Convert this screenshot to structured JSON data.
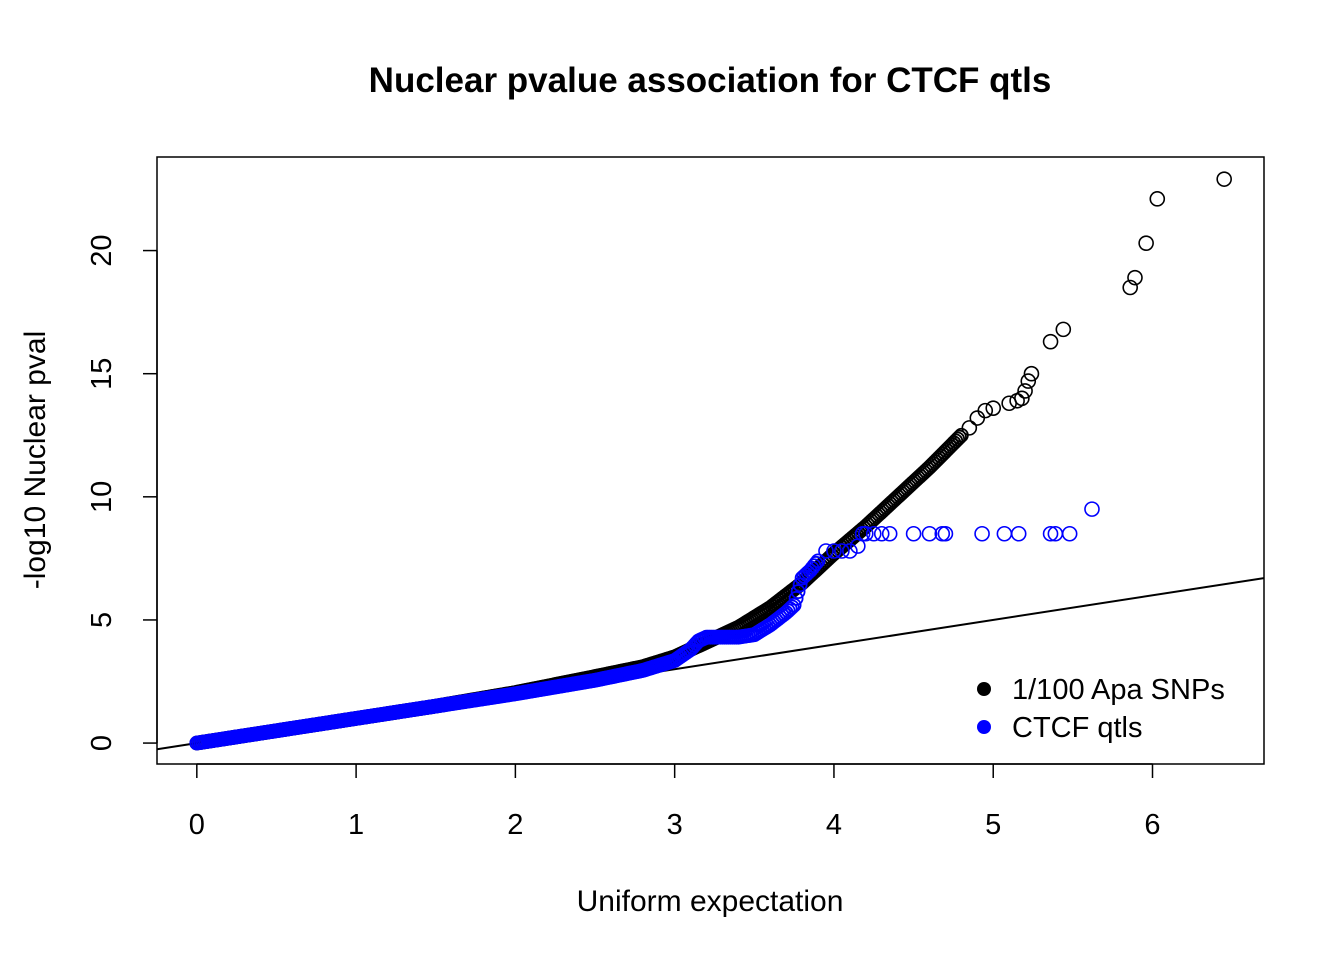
{
  "chart_data": {
    "type": "scatter",
    "title": "Nuclear pvalue association for CTCF qtls",
    "xlabel": "Uniform expectation",
    "ylabel": "-log10 Nuclear pval",
    "xlim": [
      -0.25,
      6.7
    ],
    "ylim": [
      -0.85,
      23.8
    ],
    "xticks": [
      0,
      1,
      2,
      3,
      4,
      5,
      6
    ],
    "yticks": [
      0,
      5,
      10,
      15,
      20
    ],
    "reference_line": {
      "intercept": 0,
      "slope": 1
    },
    "legend": {
      "position": "bottom-right",
      "entries": [
        {
          "label": "1/100 Apa SNPs",
          "color": "#000000"
        },
        {
          "label": "CTCF qtls",
          "color": "#0000ff"
        }
      ]
    },
    "series": [
      {
        "name": "1/100 Apa SNPs",
        "color": "#000000",
        "curve_x": [
          0,
          0.5,
          1.0,
          1.5,
          2.0,
          2.5,
          2.8,
          3.0,
          3.2,
          3.4,
          3.6,
          3.8,
          4.0,
          4.2,
          4.4,
          4.6,
          4.8
        ],
        "curve_y": [
          0,
          0.5,
          1.0,
          1.5,
          2.05,
          2.7,
          3.1,
          3.5,
          4.1,
          4.7,
          5.5,
          6.5,
          7.7,
          8.8,
          10.0,
          11.2,
          12.5
        ],
        "tail_x": [
          4.85,
          4.9,
          4.95,
          5.0,
          5.1,
          5.15,
          5.18,
          5.2,
          5.22,
          5.24,
          5.36,
          5.44,
          5.86,
          5.89,
          5.96,
          6.03,
          6.45
        ],
        "tail_y": [
          12.8,
          13.2,
          13.5,
          13.6,
          13.8,
          13.9,
          14.0,
          14.3,
          14.7,
          15.0,
          16.3,
          16.8,
          18.5,
          18.9,
          20.3,
          22.1,
          22.9
        ]
      },
      {
        "name": "CTCF qtls",
        "color": "#0000ff",
        "curve_x": [
          0,
          0.5,
          1.0,
          1.5,
          2.0,
          2.5,
          2.8,
          3.0,
          3.1,
          3.15,
          3.2,
          3.3,
          3.4,
          3.5,
          3.6,
          3.7,
          3.75,
          3.8,
          3.85,
          3.9
        ],
        "curve_y": [
          0,
          0.5,
          1.0,
          1.5,
          2.0,
          2.55,
          2.95,
          3.35,
          3.8,
          4.15,
          4.3,
          4.3,
          4.3,
          4.4,
          4.8,
          5.3,
          5.6,
          6.7,
          7.0,
          7.4
        ],
        "tail_x": [
          3.95,
          4.0,
          4.05,
          4.1,
          4.15,
          4.18,
          4.2,
          4.25,
          4.3,
          4.35,
          4.5,
          4.6,
          4.68,
          4.7,
          4.93,
          5.07,
          5.16,
          5.36,
          5.39,
          5.48,
          5.62
        ],
        "tail_y": [
          7.8,
          7.8,
          7.8,
          7.8,
          8.0,
          8.5,
          8.5,
          8.5,
          8.5,
          8.5,
          8.5,
          8.5,
          8.5,
          8.5,
          8.5,
          8.5,
          8.5,
          8.5,
          8.5,
          8.5,
          9.5
        ]
      }
    ]
  }
}
